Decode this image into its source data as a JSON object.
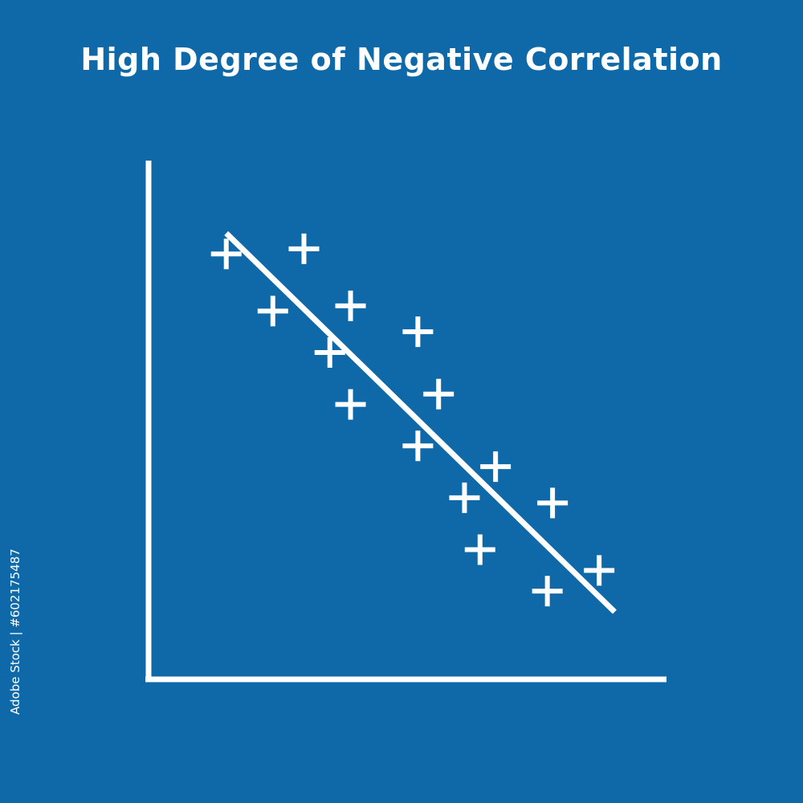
{
  "title": "High Degree of Negative Correlation",
  "side_id": "Adobe Stock | #602175487",
  "colors": {
    "background": "#0f69a8",
    "foreground": "#ffffff"
  },
  "chart_data": {
    "type": "scatter",
    "title": "High Degree of Negative Correlation",
    "xlabel": "",
    "ylabel": "",
    "xlim": [
      0,
      100
    ],
    "ylim": [
      0,
      100
    ],
    "grid": false,
    "marker": "plus",
    "points": [
      {
        "x": 15,
        "y": 82
      },
      {
        "x": 30,
        "y": 83
      },
      {
        "x": 24,
        "y": 71
      },
      {
        "x": 39,
        "y": 72
      },
      {
        "x": 35,
        "y": 63
      },
      {
        "x": 52,
        "y": 67
      },
      {
        "x": 39,
        "y": 53
      },
      {
        "x": 56,
        "y": 55
      },
      {
        "x": 52,
        "y": 45
      },
      {
        "x": 67,
        "y": 41
      },
      {
        "x": 61,
        "y": 35
      },
      {
        "x": 78,
        "y": 34
      },
      {
        "x": 64,
        "y": 25
      },
      {
        "x": 77,
        "y": 17
      },
      {
        "x": 87,
        "y": 21
      }
    ],
    "trend_line": {
      "x": [
        15,
        90
      ],
      "y": [
        86,
        13
      ]
    }
  }
}
